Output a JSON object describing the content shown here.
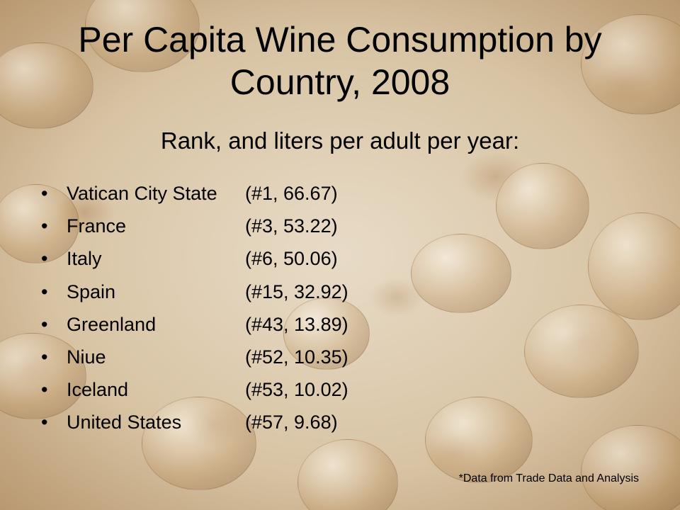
{
  "slide": {
    "title": "Per Capita Wine Consumption by Country, 2008",
    "subtitle": "Rank, and liters per adult per year:",
    "items": [
      {
        "country": "Vatican City State",
        "stat": "(#1, 66.67)"
      },
      {
        "country": "France",
        "stat": "(#3, 53.22)"
      },
      {
        "country": "Italy",
        "stat": "(#6, 50.06)"
      },
      {
        "country": "Spain",
        "stat": "(#15, 32.92)"
      },
      {
        "country": "Greenland",
        "stat": "(#43, 13.89)"
      },
      {
        "country": "Niue",
        "stat": "(#52, 10.35)"
      },
      {
        "country": "Iceland",
        "stat": "(#53, 10.02)"
      },
      {
        "country": "United States",
        "stat": "(#57, 9.68)"
      }
    ],
    "bullet": "•",
    "source": "*Data from Trade Data and Analysis"
  }
}
